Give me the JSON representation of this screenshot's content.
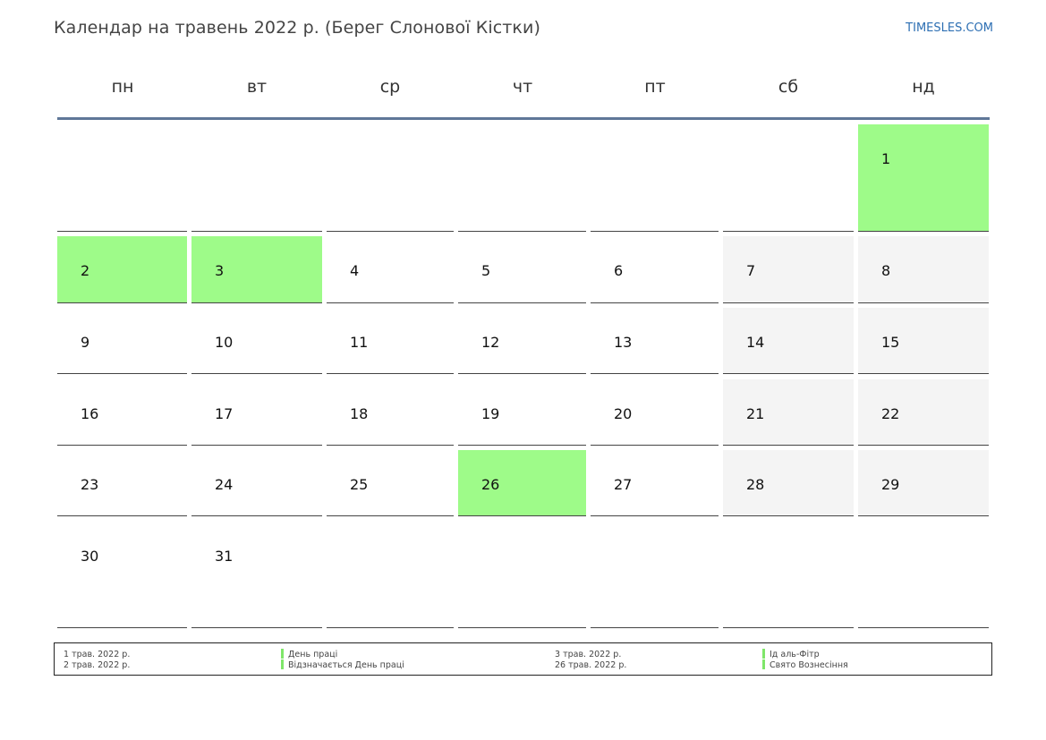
{
  "header": {
    "title": "Календар на травень 2022 р. (Берег Слонової Кістки)",
    "brand": "TIMESLES.COM"
  },
  "weekdays": [
    "пн",
    "вт",
    "ср",
    "чт",
    "пт",
    "сб",
    "нд"
  ],
  "colors": {
    "holiday": "#9efb89",
    "weekend": "#f4f4f4",
    "header_rule": "#5f7798",
    "brand": "#2d6fb3"
  },
  "calendar": {
    "weeks": [
      [
        null,
        null,
        null,
        null,
        null,
        null,
        "1"
      ],
      [
        "2",
        "3",
        "4",
        "5",
        "6",
        "7",
        "8"
      ],
      [
        "9",
        "10",
        "11",
        "12",
        "13",
        "14",
        "15"
      ],
      [
        "16",
        "17",
        "18",
        "19",
        "20",
        "21",
        "22"
      ],
      [
        "23",
        "24",
        "25",
        "26",
        "27",
        "28",
        "29"
      ],
      [
        "30",
        "31",
        null,
        null,
        null,
        null,
        null
      ]
    ],
    "holiday_days": [
      "1",
      "2",
      "3",
      "26"
    ]
  },
  "legend": [
    {
      "date": "1 трав. 2022 р.",
      "name": "День праці"
    },
    {
      "date": "2 трав. 2022 р.",
      "name": "Відзначається День праці"
    },
    {
      "date": "3 трав. 2022 р.",
      "name": "Ід аль-Фітр"
    },
    {
      "date": "26 трав. 2022 р.",
      "name": "Свято Вознесіння"
    }
  ]
}
